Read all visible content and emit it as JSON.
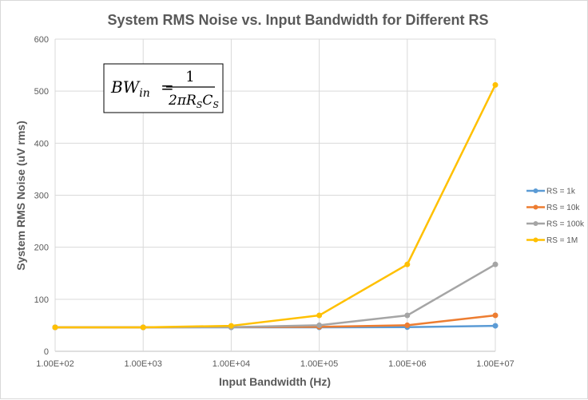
{
  "chart_data": {
    "type": "line",
    "title": "System RMS Noise vs. Input Bandwidth for Different RS",
    "xlabel": "Input Bandwidth (Hz)",
    "ylabel": "System RMS Noise (uV rms)",
    "x_scale": "log",
    "x": [
      100,
      1000,
      10000,
      100000,
      1000000,
      10000000
    ],
    "x_tick_labels": [
      "1.00E+02",
      "1.00E+03",
      "1.00E+04",
      "1.00E+05",
      "1.00E+06",
      "1.00E+07"
    ],
    "ylim": [
      0,
      600
    ],
    "y_ticks": [
      0,
      100,
      200,
      300,
      400,
      500,
      600
    ],
    "grid": true,
    "legend_position": "right",
    "series": [
      {
        "name": "RS = 1k",
        "color": "#5b9bd5",
        "values": [
          46,
          46,
          46,
          46,
          46.5,
          49
        ]
      },
      {
        "name": "RS = 10k",
        "color": "#ed7d31",
        "values": [
          46,
          46,
          46.5,
          47,
          50,
          69
        ]
      },
      {
        "name": "RS = 100k",
        "color": "#a5a5a5",
        "values": [
          46,
          46,
          46.5,
          50,
          69,
          167
        ]
      },
      {
        "name": "RS = 1M",
        "color": "#ffc000",
        "values": [
          46,
          46,
          49,
          69,
          167,
          512
        ]
      }
    ],
    "annotation": {
      "lhs": "BW",
      "lhs_sub": "in",
      "equals": "=",
      "numerator": "1",
      "denominator": "2πR",
      "den_sub1": "S",
      "den_mid": "C",
      "den_sub2": "S"
    }
  }
}
